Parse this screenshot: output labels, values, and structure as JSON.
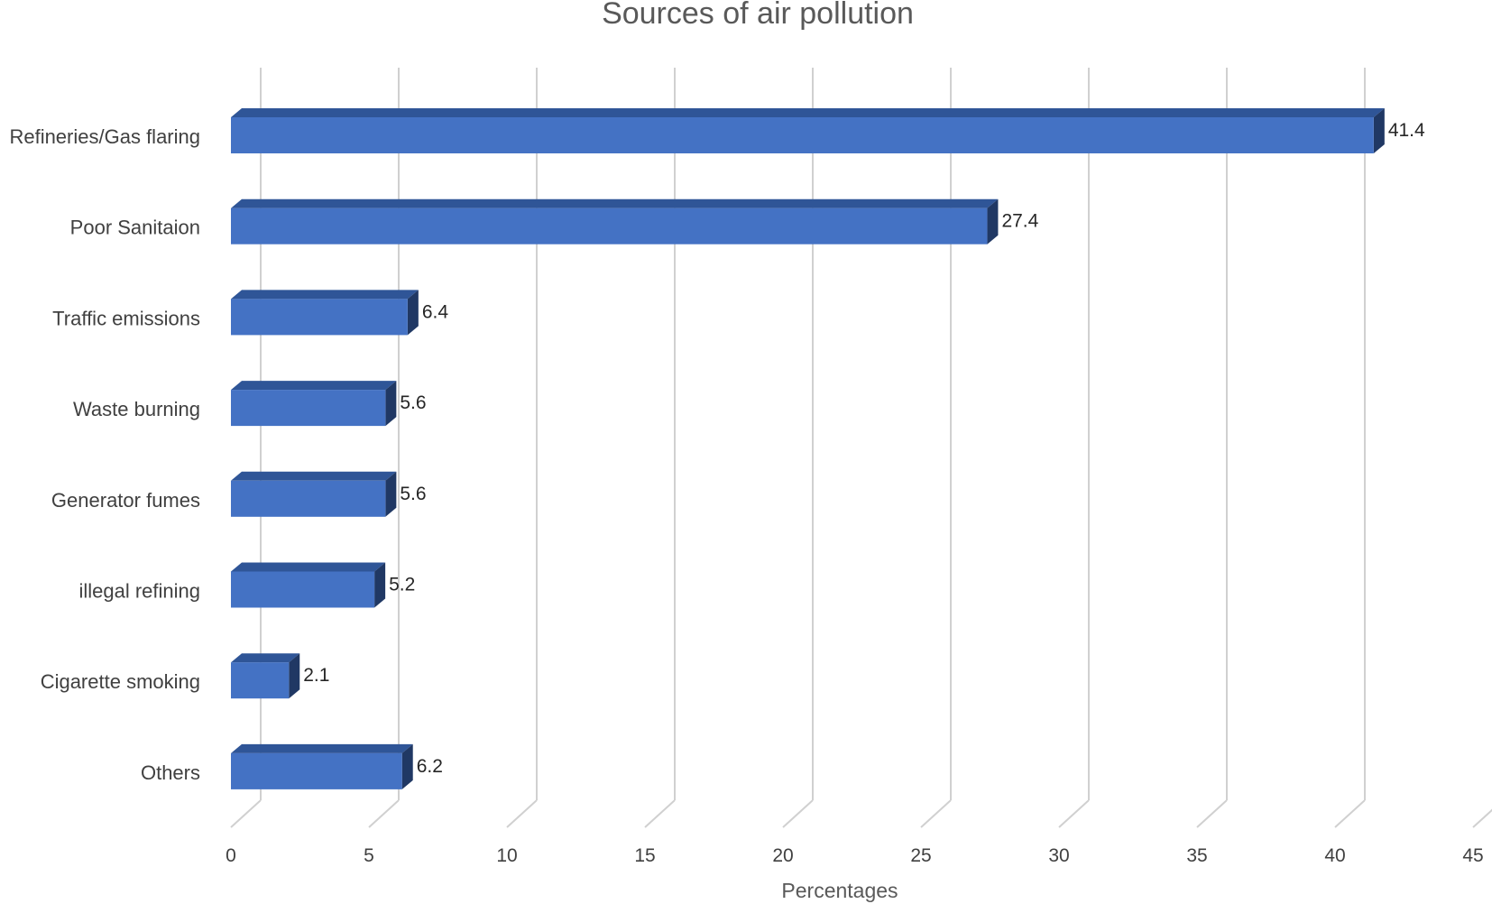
{
  "chart_data": {
    "type": "bar",
    "orientation": "horizontal",
    "style": "3d",
    "title": "Sources of air pollution",
    "xlabel": "Percentages",
    "ylabel": "",
    "categories": [
      "Refineries/Gas flaring",
      "Poor Sanitaion",
      "Traffic emissions",
      "Waste burning",
      "Generator fumes",
      "illegal refining",
      "Cigarette smoking",
      "Others"
    ],
    "values": [
      41.4,
      27.4,
      6.4,
      5.6,
      5.6,
      5.2,
      2.1,
      6.2
    ],
    "data_labels": [
      "41.4",
      "27.4",
      "6.4",
      "5.6",
      "5.6",
      "5.2",
      "2.1",
      "6.2"
    ],
    "xlim": [
      0,
      45
    ],
    "xticks": [
      "0",
      "5",
      "10",
      "15",
      "20",
      "25",
      "30",
      "35",
      "40",
      "45"
    ],
    "grid": true,
    "legend": "none",
    "colors": {
      "bar_front": "#4472C4",
      "bar_top": "#2F5597",
      "bar_side": "#203864",
      "grid": "#D0D0D0"
    }
  }
}
